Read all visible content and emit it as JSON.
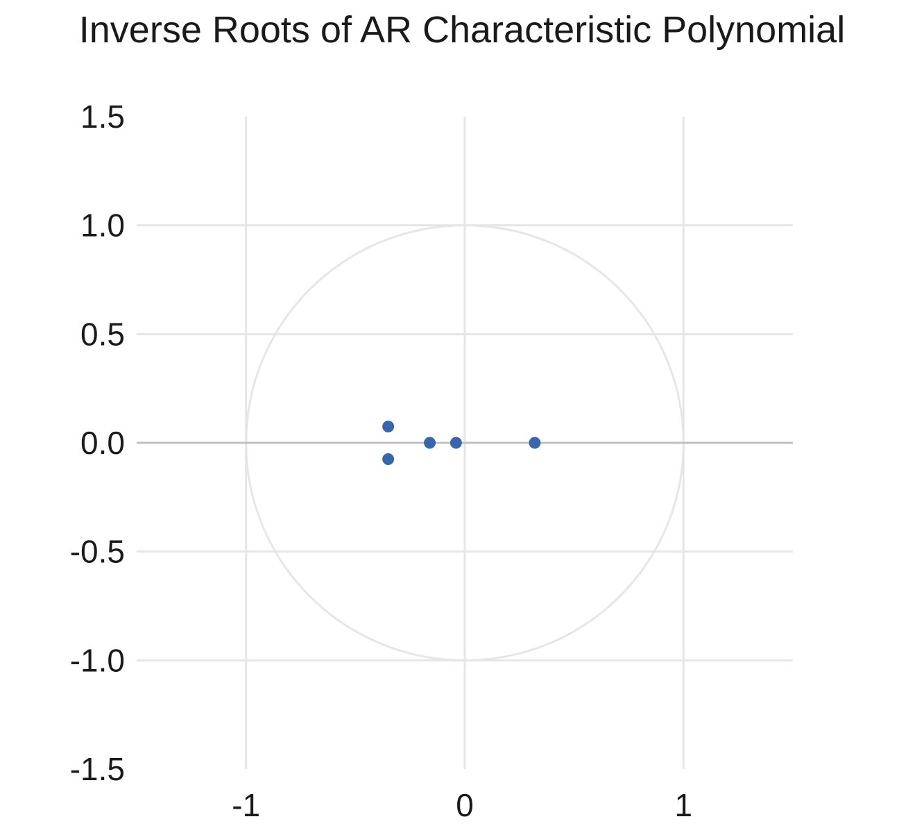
{
  "chart_data": {
    "type": "scatter",
    "title": "Inverse Roots of AR Characteristic Polynomial",
    "xlabel": "",
    "ylabel": "",
    "xlim": [
      -1.5,
      1.5
    ],
    "ylim": [
      -1.5,
      1.5
    ],
    "x_ticks": [
      -1,
      0,
      1
    ],
    "x_tick_labels": [
      "-1",
      "0",
      "1"
    ],
    "y_ticks": [
      1.5,
      1.0,
      0.5,
      0.0,
      -0.5,
      -1.0,
      -1.5
    ],
    "y_tick_labels": [
      "1.5",
      "1.0",
      "0.5",
      "0.0",
      "-0.5",
      "-1.0",
      "-1.5"
    ],
    "grid": true,
    "unit_circle": true,
    "series": [
      {
        "points": [
          {
            "x": -0.35,
            "y": 0.075
          },
          {
            "x": -0.35,
            "y": -0.075
          },
          {
            "x": -0.16,
            "y": 0.0
          },
          {
            "x": -0.04,
            "y": 0.0
          },
          {
            "x": 0.32,
            "y": 0.0
          }
        ],
        "color": "#3a65ab"
      }
    ],
    "colors": {
      "grid": "#e6e6e6",
      "zero_line": "#bfbfbf",
      "circle": "#e6e6e6",
      "points": "#3a65ab"
    }
  }
}
